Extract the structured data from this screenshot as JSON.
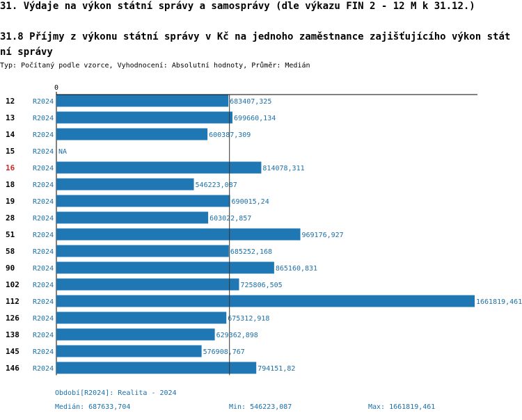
{
  "header": {
    "title": "31. Výdaje na výkon státní správy a samosprávy (dle výkazu FIN 2 - 12 M k 31.12.)",
    "subtitle": "31.8 Příjmy z výkonu státní správy v Kč na jednoho zaměstnance zajišťujícího výkon státní správy",
    "type_line": "Typ: Počítaný podle vzorce, Vyhodnocení: Absolutní hodnoty, Průměr: Medián"
  },
  "colors": {
    "bar": "#1f77b4",
    "label_blue": "#1a6fa8",
    "highlight": "#d62728",
    "axis": "#000000"
  },
  "chart_data": {
    "type": "bar",
    "orientation": "horizontal",
    "axis_zero_label": "0",
    "xlim": [
      0,
      1661819.461
    ],
    "reference_line": 687633.704,
    "highlight_category": "16",
    "categories": [
      "12",
      "13",
      "14",
      "15",
      "16",
      "18",
      "19",
      "28",
      "51",
      "58",
      "90",
      "102",
      "112",
      "126",
      "138",
      "145",
      "146"
    ],
    "series": [
      {
        "period": "R2024",
        "values": [
          683407.325,
          699660.134,
          600387.309,
          null,
          814078.311,
          546223.087,
          690015.24,
          603022.857,
          969176.927,
          685252.168,
          865160.831,
          725806.505,
          1661819.461,
          675312.918,
          629362.898,
          576908.767,
          794151.82
        ],
        "value_labels": [
          "683407,325",
          "699660,134",
          "600387,309",
          "NA",
          "814078,311",
          "546223,087",
          "690015,24",
          "603022,857",
          "969176,927",
          "685252,168",
          "865160,831",
          "725806,505",
          "1661819,461",
          "675312,918",
          "629362,898",
          "576908,767",
          "794151,82"
        ]
      }
    ]
  },
  "footer": {
    "period": "Období[R2024]: Realita - 2024",
    "median": "Medián: 687633,704",
    "min": "Min: 546223,087",
    "max": "Max: 1661819,461"
  }
}
